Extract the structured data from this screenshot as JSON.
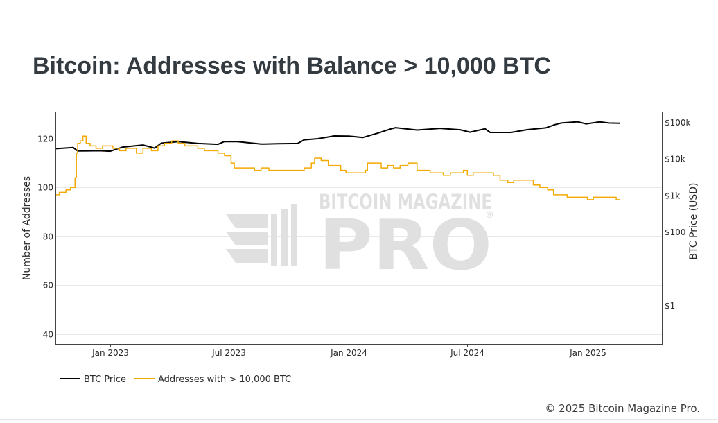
{
  "title": "Bitcoin: Addresses with Balance > 10,000 BTC",
  "copyright": "© 2025 Bitcoin Magazine Pro.",
  "watermark": {
    "line1": "BITCOIN MAGAZINE",
    "line2": "PRO",
    "mark": "®"
  },
  "colors": {
    "btc_price": "#000000",
    "addresses": "#f2a900",
    "grid": "#e8e8e8",
    "watermark": "#e0e0e0"
  },
  "chart_data": {
    "type": "line",
    "title": "Bitcoin: Addresses with Balance > 10,000 BTC",
    "x_type": "date",
    "x_range": [
      "2022-10-10",
      "2025-04-25"
    ],
    "x_ticks": [
      {
        "date": "2023-01-01",
        "label": "Jan 2023"
      },
      {
        "date": "2023-07-01",
        "label": "Jul 2023"
      },
      {
        "date": "2024-01-01",
        "label": "Jan 2024"
      },
      {
        "date": "2024-07-01",
        "label": "Jul 2024"
      },
      {
        "date": "2025-01-01",
        "label": "Jan 2025"
      }
    ],
    "y_left": {
      "label": "Number of Addresses",
      "range": [
        36,
        131
      ],
      "ticks": [
        40,
        60,
        80,
        100,
        120
      ]
    },
    "y_right": {
      "label": "BTC Price (USD)",
      "scale": "log",
      "range": [
        0.09,
        200000
      ],
      "ticks": [
        {
          "value": 1,
          "label": "$1"
        },
        {
          "value": 100,
          "label": "$100"
        },
        {
          "value": 1000,
          "label": "$1k"
        },
        {
          "value": 10000,
          "label": "$10k"
        },
        {
          "value": 100000,
          "label": "$100k"
        }
      ]
    },
    "grid": true,
    "legend_position": "bottom-left",
    "series": [
      {
        "name": "BTC Price",
        "axis": "right",
        "color": "#000000",
        "points": [
          [
            "2022-10-10",
            19500
          ],
          [
            "2022-11-05",
            21000
          ],
          [
            "2022-11-12",
            16800
          ],
          [
            "2022-12-15",
            17100
          ],
          [
            "2023-01-01",
            16600
          ],
          [
            "2023-01-20",
            21500
          ],
          [
            "2023-02-20",
            24500
          ],
          [
            "2023-03-10",
            20200
          ],
          [
            "2023-03-20",
            27500
          ],
          [
            "2023-04-15",
            30300
          ],
          [
            "2023-05-15",
            27000
          ],
          [
            "2023-06-15",
            25600
          ],
          [
            "2023-06-25",
            30500
          ],
          [
            "2023-07-15",
            30300
          ],
          [
            "2023-08-20",
            26000
          ],
          [
            "2023-09-15",
            26500
          ],
          [
            "2023-10-15",
            27000
          ],
          [
            "2023-10-25",
            34000
          ],
          [
            "2023-11-15",
            36500
          ],
          [
            "2023-12-10",
            43500
          ],
          [
            "2024-01-01",
            43000
          ],
          [
            "2024-01-23",
            39500
          ],
          [
            "2024-02-15",
            52000
          ],
          [
            "2024-03-05",
            67000
          ],
          [
            "2024-03-13",
            73000
          ],
          [
            "2024-04-15",
            63000
          ],
          [
            "2024-05-20",
            70000
          ],
          [
            "2024-06-20",
            64000
          ],
          [
            "2024-07-05",
            55000
          ],
          [
            "2024-07-28",
            68000
          ],
          [
            "2024-08-05",
            54000
          ],
          [
            "2024-09-06",
            54000
          ],
          [
            "2024-09-30",
            64000
          ],
          [
            "2024-10-29",
            72000
          ],
          [
            "2024-11-12",
            88000
          ],
          [
            "2024-11-22",
            98000
          ],
          [
            "2024-12-17",
            106000
          ],
          [
            "2024-12-30",
            93000
          ],
          [
            "2025-01-20",
            105000
          ],
          [
            "2025-02-03",
            98000
          ],
          [
            "2025-02-20",
            96000
          ]
        ]
      },
      {
        "name": "Addresses with > 10,000 BTC",
        "axis": "left",
        "color": "#f2a900",
        "points": [
          [
            "2022-10-10",
            97
          ],
          [
            "2022-10-15",
            98
          ],
          [
            "2022-10-25",
            99
          ],
          [
            "2022-11-01",
            100
          ],
          [
            "2022-11-08",
            104
          ],
          [
            "2022-11-10",
            114
          ],
          [
            "2022-11-12",
            118
          ],
          [
            "2022-11-16",
            119
          ],
          [
            "2022-11-20",
            121
          ],
          [
            "2022-11-25",
            118
          ],
          [
            "2022-12-01",
            117
          ],
          [
            "2022-12-10",
            116
          ],
          [
            "2022-12-20",
            117
          ],
          [
            "2023-01-05",
            116
          ],
          [
            "2023-01-15",
            115
          ],
          [
            "2023-01-25",
            116
          ],
          [
            "2023-02-10",
            114
          ],
          [
            "2023-02-20",
            116
          ],
          [
            "2023-03-05",
            115
          ],
          [
            "2023-03-15",
            117
          ],
          [
            "2023-03-25",
            118
          ],
          [
            "2023-04-05",
            119
          ],
          [
            "2023-04-15",
            118
          ],
          [
            "2023-04-25",
            117
          ],
          [
            "2023-05-05",
            117
          ],
          [
            "2023-05-15",
            116
          ],
          [
            "2023-05-25",
            115
          ],
          [
            "2023-06-05",
            115
          ],
          [
            "2023-06-15",
            114
          ],
          [
            "2023-06-25",
            113
          ],
          [
            "2023-07-05",
            110
          ],
          [
            "2023-07-10",
            108
          ],
          [
            "2023-07-20",
            108
          ],
          [
            "2023-08-01",
            108
          ],
          [
            "2023-08-10",
            107
          ],
          [
            "2023-08-20",
            108
          ],
          [
            "2023-09-01",
            107
          ],
          [
            "2023-09-15",
            107
          ],
          [
            "2023-10-01",
            107
          ],
          [
            "2023-10-15",
            107
          ],
          [
            "2023-10-25",
            108
          ],
          [
            "2023-11-05",
            110
          ],
          [
            "2023-11-10",
            112
          ],
          [
            "2023-11-20",
            111
          ],
          [
            "2023-12-01",
            109
          ],
          [
            "2023-12-10",
            109
          ],
          [
            "2023-12-20",
            107
          ],
          [
            "2023-12-28",
            106
          ],
          [
            "2024-01-05",
            106
          ],
          [
            "2024-01-10",
            106
          ],
          [
            "2024-01-20",
            106
          ],
          [
            "2024-01-27",
            107
          ],
          [
            "2024-01-30",
            110
          ],
          [
            "2024-02-10",
            110
          ],
          [
            "2024-02-20",
            108
          ],
          [
            "2024-03-01",
            109
          ],
          [
            "2024-03-10",
            108
          ],
          [
            "2024-03-20",
            109
          ],
          [
            "2024-04-01",
            110
          ],
          [
            "2024-04-10",
            110
          ],
          [
            "2024-04-15",
            107
          ],
          [
            "2024-04-25",
            107
          ],
          [
            "2024-05-05",
            106
          ],
          [
            "2024-05-15",
            106
          ],
          [
            "2024-05-25",
            105
          ],
          [
            "2024-06-05",
            106
          ],
          [
            "2024-06-15",
            106
          ],
          [
            "2024-06-25",
            107
          ],
          [
            "2024-07-01",
            105
          ],
          [
            "2024-07-10",
            106
          ],
          [
            "2024-07-20",
            106
          ],
          [
            "2024-08-01",
            106
          ],
          [
            "2024-08-10",
            105
          ],
          [
            "2024-08-20",
            103
          ],
          [
            "2024-09-01",
            102
          ],
          [
            "2024-09-10",
            103
          ],
          [
            "2024-09-20",
            103
          ],
          [
            "2024-10-01",
            103
          ],
          [
            "2024-10-10",
            101
          ],
          [
            "2024-10-20",
            100
          ],
          [
            "2024-10-28",
            100
          ],
          [
            "2024-11-01",
            99
          ],
          [
            "2024-11-10",
            97
          ],
          [
            "2024-11-20",
            97
          ],
          [
            "2024-12-01",
            96
          ],
          [
            "2024-12-10",
            96
          ],
          [
            "2024-12-20",
            96
          ],
          [
            "2025-01-01",
            95
          ],
          [
            "2025-01-10",
            96
          ],
          [
            "2025-01-20",
            96
          ],
          [
            "2025-02-01",
            96
          ],
          [
            "2025-02-10",
            96
          ],
          [
            "2025-02-14",
            95
          ],
          [
            "2025-02-20",
            95
          ]
        ]
      }
    ]
  }
}
